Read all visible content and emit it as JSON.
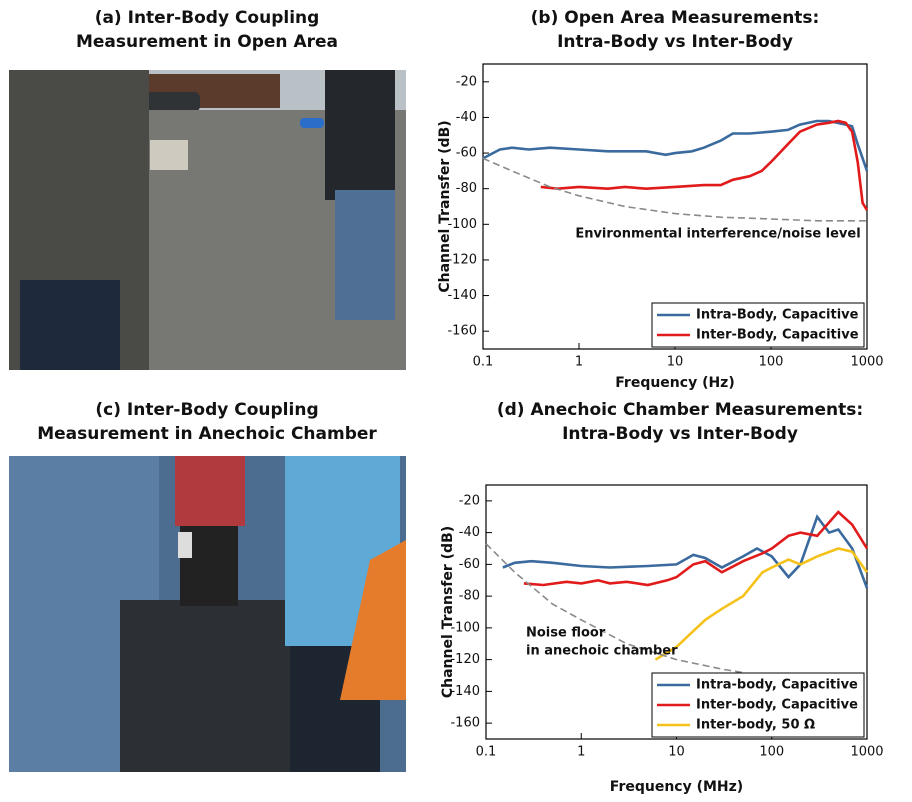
{
  "photos": [
    {
      "title": [
        "(a) Inter-Body Coupling",
        "Measurement in Open Area"
      ]
    },
    {
      "title": [
        "(c) Inter-Body Coupling",
        "Measurement in Anechoic Chamber"
      ]
    }
  ],
  "chart_data": [
    {
      "type": "line",
      "title": [
        "(b) Open Area Measurements:",
        "Intra-Body vs Inter-Body"
      ],
      "x_label": "Frequency (Hz)",
      "y_label": "Channel Transfer (dB)",
      "xscale": "log",
      "xlim": [
        0.1,
        1000
      ],
      "xticks": [
        0.1,
        1,
        10,
        100,
        1000
      ],
      "ylim": [
        -170,
        -10
      ],
      "yticks": [
        -20,
        -40,
        -60,
        -80,
        -100,
        -120,
        -140,
        -160
      ],
      "legend": "bottom-right",
      "annotations": [
        {
          "text": "Environmental interference/noise level"
        }
      ],
      "series": [
        {
          "name": "Intra-Body, Capacitive",
          "color": "#3a6a9e",
          "x": [
            0.1,
            0.15,
            0.2,
            0.3,
            0.5,
            1,
            2,
            5,
            8,
            10,
            15,
            20,
            30,
            40,
            60,
            100,
            150,
            200,
            300,
            400,
            600,
            700,
            800,
            1000
          ],
          "values": [
            -63,
            -58,
            -57,
            -58,
            -57,
            -58,
            -59,
            -59,
            -61,
            -60,
            -59,
            -57,
            -53,
            -49,
            -49,
            -48,
            -47,
            -44,
            -42,
            -42,
            -44,
            -45,
            -55,
            -70
          ]
        },
        {
          "name": "Inter-Body, Capacitive",
          "color": "#e11b1b",
          "x": [
            0.4,
            0.6,
            1,
            2,
            3,
            5,
            10,
            20,
            30,
            40,
            60,
            80,
            100,
            150,
            200,
            300,
            400,
            500,
            600,
            700,
            800,
            900,
            1000
          ],
          "values": [
            -79,
            -80,
            -79,
            -80,
            -79,
            -80,
            -79,
            -78,
            -78,
            -75,
            -73,
            -70,
            -65,
            -55,
            -48,
            -44,
            -43,
            -42,
            -43,
            -48,
            -65,
            -88,
            -92
          ]
        },
        {
          "color": "#8a8a8a",
          "dash": true,
          "x": [
            0.1,
            0.2,
            0.5,
            1,
            3,
            10,
            30,
            100,
            300,
            1000
          ],
          "values": [
            -63,
            -70,
            -79,
            -84,
            -90,
            -94,
            -96,
            -97,
            -98,
            -98
          ]
        }
      ]
    },
    {
      "type": "line",
      "title": [
        "(d) Anechoic Chamber Measurements:",
        "Intra-Body vs Inter-Body"
      ],
      "x_label": "Frequency (MHz)",
      "y_label": "Channel Transfer (dB)",
      "xscale": "log",
      "xlim": [
        0.1,
        1000
      ],
      "xticks": [
        0.1,
        1,
        10,
        100,
        1000
      ],
      "ylim": [
        -170,
        -10
      ],
      "yticks": [
        -20,
        -40,
        -60,
        -80,
        -100,
        -120,
        -140,
        -160
      ],
      "legend": "bottom-right",
      "annotations": [
        {
          "text": "Noise floor"
        },
        {
          "text": "in anechoic chamber"
        }
      ],
      "series": [
        {
          "name": "Intra-body, Capacitive",
          "color": "#3a6a9e",
          "x": [
            0.15,
            0.2,
            0.3,
            0.5,
            1,
            2,
            5,
            10,
            15,
            20,
            30,
            50,
            70,
            100,
            150,
            200,
            300,
            400,
            500,
            700,
            1000
          ],
          "values": [
            -62,
            -59,
            -58,
            -59,
            -61,
            -62,
            -61,
            -60,
            -54,
            -56,
            -62,
            -55,
            -50,
            -55,
            -68,
            -60,
            -30,
            -40,
            -38,
            -50,
            -75
          ]
        },
        {
          "name": "Inter-body, Capacitive",
          "color": "#e11b1b",
          "x": [
            0.25,
            0.4,
            0.7,
            1,
            1.5,
            2,
            3,
            5,
            8,
            10,
            15,
            20,
            30,
            50,
            80,
            100,
            150,
            200,
            300,
            500,
            700,
            1000
          ],
          "values": [
            -72,
            -73,
            -71,
            -72,
            -70,
            -72,
            -71,
            -73,
            -70,
            -68,
            -60,
            -58,
            -65,
            -58,
            -53,
            -50,
            -42,
            -40,
            -42,
            -27,
            -35,
            -50
          ]
        },
        {
          "name": "Inter-body, 50 Ω",
          "color": "#f5c21b",
          "x": [
            6,
            10,
            20,
            30,
            50,
            80,
            100,
            150,
            200,
            300,
            500,
            700,
            1000
          ],
          "values": [
            -120,
            -112,
            -95,
            -88,
            -80,
            -65,
            -62,
            -57,
            -60,
            -55,
            -50,
            -52,
            -65
          ]
        },
        {
          "color": "#8a8a8a",
          "dash": true,
          "x": [
            0.1,
            0.2,
            0.5,
            1,
            3,
            10,
            30,
            60
          ],
          "values": [
            -47,
            -65,
            -85,
            -95,
            -110,
            -120,
            -126,
            -129
          ]
        }
      ]
    }
  ]
}
